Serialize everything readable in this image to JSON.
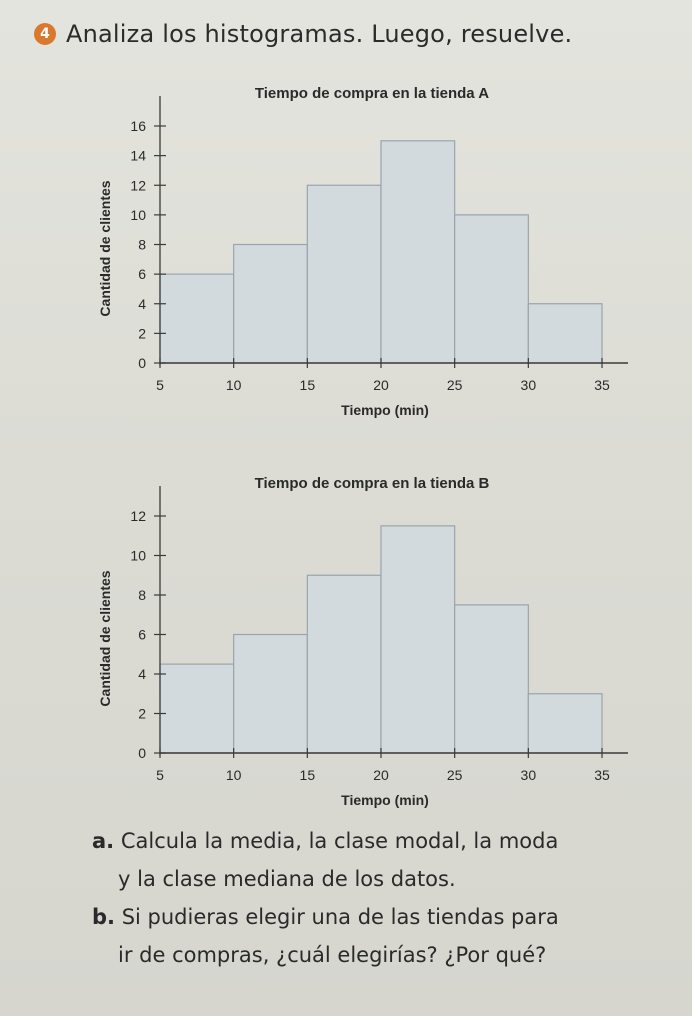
{
  "exercise": {
    "number": "4",
    "instruction": "Analiza los histogramas. Luego, resuelve."
  },
  "chart_data": [
    {
      "type": "bar",
      "title": "Tiempo de compra en la tienda A",
      "xlabel": "Tiempo (min)",
      "ylabel": "Cantidad de clientes",
      "x_ticks": [
        5,
        10,
        15,
        20,
        25,
        30,
        35
      ],
      "y_ticks": [
        0,
        2,
        4,
        6,
        8,
        10,
        12,
        14,
        16
      ],
      "bins": [
        [
          5,
          10
        ],
        [
          10,
          15
        ],
        [
          15,
          20
        ],
        [
          20,
          25
        ],
        [
          25,
          30
        ],
        [
          30,
          35
        ]
      ],
      "values": [
        6,
        8,
        12,
        15,
        10,
        4
      ],
      "xlim": [
        5,
        35
      ],
      "ylim": [
        0,
        16
      ],
      "bar_color": "#d3dade"
    },
    {
      "type": "bar",
      "title": "Tiempo de compra en la tienda B",
      "xlabel": "Tiempo (min)",
      "ylabel": "Cantidad de clientes",
      "x_ticks": [
        5,
        10,
        15,
        20,
        25,
        30,
        35
      ],
      "y_ticks": [
        0,
        2,
        4,
        6,
        8,
        10,
        12
      ],
      "bins": [
        [
          5,
          10
        ],
        [
          10,
          15
        ],
        [
          15,
          20
        ],
        [
          20,
          25
        ],
        [
          25,
          30
        ],
        [
          30,
          35
        ]
      ],
      "values": [
        4.5,
        6,
        9,
        11.5,
        7.5,
        3
      ],
      "xlim": [
        5,
        35
      ],
      "ylim": [
        0,
        12
      ],
      "bar_color": "#d3dade"
    }
  ],
  "questions": {
    "a_letter": "a.",
    "a_line1": "Calcula la media, la clase modal, la moda",
    "a_line2": "y la clase mediana de los datos.",
    "b_letter": "b.",
    "b_line1": "Si pudieras elegir una de las tiendas para",
    "b_line2": "ir de compras, ¿cuál elegirías? ¿Por qué?"
  }
}
